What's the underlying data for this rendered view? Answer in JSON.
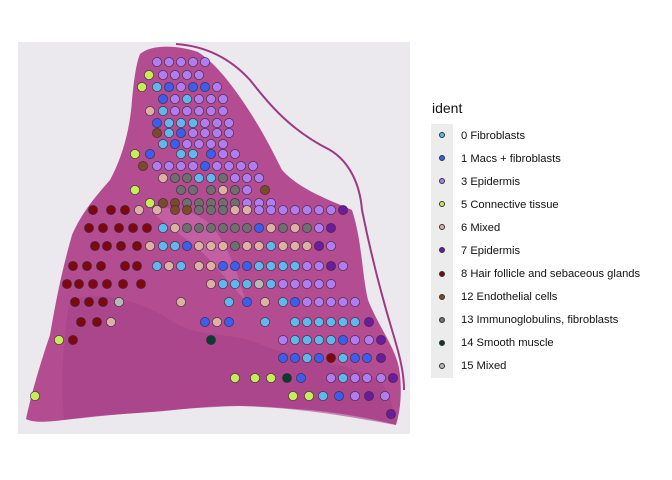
{
  "legend": {
    "title": "ident",
    "items": [
      {
        "label": "0 Fibroblasts",
        "color": "#5fb8ec"
      },
      {
        "label": "1 Macs + fibroblasts",
        "color": "#3a5ef0"
      },
      {
        "label": "3 Epidermis",
        "color": "#b07cf2"
      },
      {
        "label": "5 Connective tissue",
        "color": "#c6ed56"
      },
      {
        "label": "6 Mixed",
        "color": "#dcb0a2"
      },
      {
        "label": "7 Epidermis",
        "color": "#6a1b9e"
      },
      {
        "label": "8 Hair follicle and sebaceous glands",
        "color": "#7e0810"
      },
      {
        "label": "12 Endothelial cells",
        "color": "#7c4a26"
      },
      {
        "label": "13 Immunoglobulins, fibroblasts",
        "color": "#6f6f6f"
      },
      {
        "label": "14 Smooth muscle",
        "color": "#0b3d2c"
      },
      {
        "label": "15 Mixed",
        "color": "#b8b8b8"
      }
    ]
  },
  "image_description_icon": "tissue-histology-image"
}
